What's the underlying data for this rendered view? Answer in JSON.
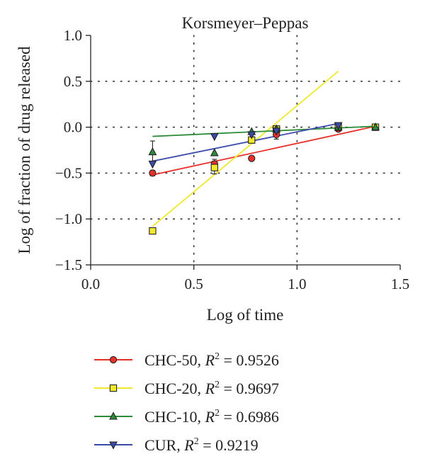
{
  "chart_data": {
    "type": "scatter",
    "title": "Korsmeyer–Peppas",
    "xlabel": "Log of time",
    "ylabel": "Log of fraction of drug released",
    "xlim": [
      0.0,
      1.5
    ],
    "ylim": [
      -1.5,
      1.0
    ],
    "x_ticks": [
      "0.0",
      "0.5",
      "1.0",
      "1.5"
    ],
    "y_ticks": [
      "1.0",
      "0.5",
      "0.0",
      "−0.5",
      "−1.0",
      "−1.5"
    ],
    "x_tick_values": [
      0.0,
      0.5,
      1.0,
      1.5
    ],
    "y_tick_values": [
      1.0,
      0.5,
      0.0,
      -0.5,
      -1.0,
      -1.5
    ],
    "x_grid_values": [
      0.5,
      1.0
    ],
    "y_grid_values": [
      0.5,
      0.0,
      -0.5,
      -1.0
    ],
    "grid": "dotted",
    "legend_position": "bottom",
    "series": [
      {
        "key": "chc50",
        "legend_text": "CHC-50, ",
        "r2_symbol": "R",
        "r2_exp": "2",
        "r2_text": " = 0.9526",
        "color": "#e8302a",
        "marker": "circle",
        "marker_fill": "#e8302a",
        "points": [
          {
            "x": 0.3,
            "y": -0.5,
            "err": 0.03
          },
          {
            "x": 0.6,
            "y": -0.4,
            "err": 0.05
          },
          {
            "x": 0.78,
            "y": -0.34,
            "err": 0.0
          },
          {
            "x": 0.9,
            "y": -0.08,
            "err": 0.05
          },
          {
            "x": 1.2,
            "y": -0.02,
            "err": 0.0
          },
          {
            "x": 1.38,
            "y": 0.0,
            "err": 0.0
          }
        ],
        "fit": {
          "x": [
            0.3,
            1.38
          ],
          "y": [
            -0.52,
            0.01
          ]
        }
      },
      {
        "key": "chc20",
        "legend_text": "CHC-20, ",
        "r2_symbol": "R",
        "r2_exp": "2",
        "r2_text": " = 0.9697",
        "color": "#f2e82a",
        "marker": "square",
        "marker_fill": "#f2e82a",
        "points": [
          {
            "x": 0.3,
            "y": -1.13,
            "err": 0.0
          },
          {
            "x": 0.6,
            "y": -0.44,
            "err": 0.07
          },
          {
            "x": 0.78,
            "y": -0.14,
            "err": 0.0
          },
          {
            "x": 0.9,
            "y": -0.02,
            "err": 0.0
          },
          {
            "x": 1.2,
            "y": 0.0,
            "err": 0.0
          },
          {
            "x": 1.38,
            "y": 0.0,
            "err": 0.0
          }
        ],
        "fit": {
          "x": [
            0.3,
            1.2
          ],
          "y": [
            -1.08,
            0.61
          ]
        }
      },
      {
        "key": "chc10",
        "legend_text": "CHC-10, ",
        "r2_symbol": "R",
        "r2_exp": "2",
        "r2_text": " = 0.6986",
        "color": "#2e8b3a",
        "marker": "triangle-up",
        "marker_fill": "#2e8b3a",
        "points": [
          {
            "x": 0.3,
            "y": -0.27,
            "err": 0.12
          },
          {
            "x": 0.6,
            "y": -0.28,
            "err": 0.0
          },
          {
            "x": 0.78,
            "y": -0.05,
            "err": 0.0
          },
          {
            "x": 0.9,
            "y": -0.02,
            "err": 0.0
          },
          {
            "x": 1.2,
            "y": 0.0,
            "err": 0.0
          },
          {
            "x": 1.38,
            "y": 0.0,
            "err": 0.0
          }
        ],
        "fit": {
          "x": [
            0.3,
            1.38
          ],
          "y": [
            -0.1,
            0.01
          ]
        }
      },
      {
        "key": "cur",
        "legend_text": "CUR, ",
        "r2_symbol": "R",
        "r2_exp": "2",
        "r2_text": " = 0.9219",
        "color": "#3b4bab",
        "marker": "triangle-down",
        "marker_fill": "#3b4bab",
        "points": [
          {
            "x": 0.3,
            "y": -0.4,
            "err": 0.0
          },
          {
            "x": 0.6,
            "y": -0.1,
            "err": 0.0
          },
          {
            "x": 0.78,
            "y": -0.08,
            "err": 0.0
          },
          {
            "x": 0.9,
            "y": -0.04,
            "err": 0.0
          },
          {
            "x": 1.2,
            "y": 0.02,
            "err": 0.0
          }
        ],
        "fit": {
          "x": [
            0.3,
            1.2
          ],
          "y": [
            -0.37,
            0.04
          ]
        }
      }
    ]
  }
}
